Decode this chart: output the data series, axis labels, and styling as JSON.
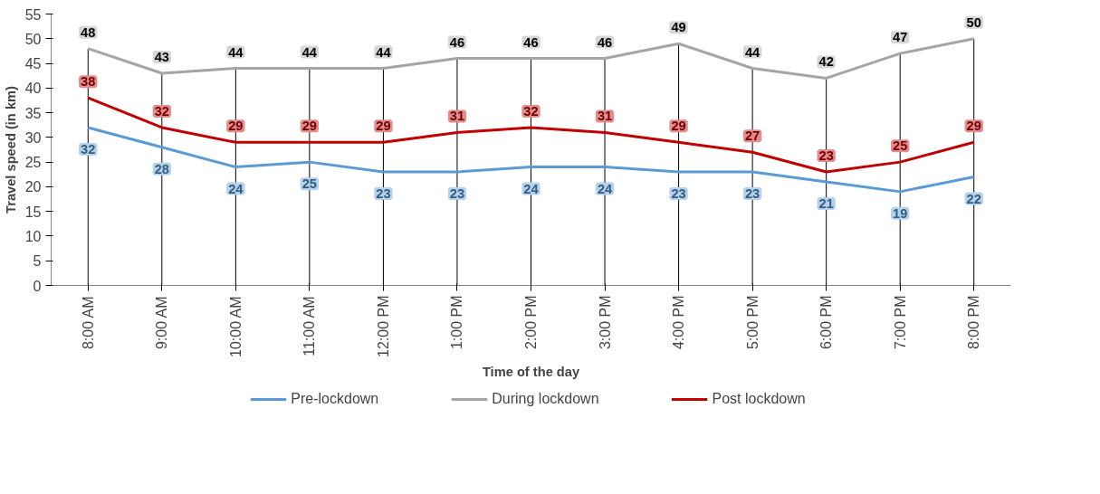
{
  "chart_data": {
    "type": "line",
    "xlabel": "Time of the day",
    "ylabel": "Travel speed (in km)",
    "categories": [
      "8:00 AM",
      "9:00 AM",
      "10:00 AM",
      "11:00 AM",
      "12:00 PM",
      "1:00 PM",
      "2:00 PM",
      "3:00 PM",
      "4:00 PM",
      "5:00 PM",
      "6:00 PM",
      "7:00 PM",
      "8:00 PM"
    ],
    "series": [
      {
        "name": "Pre-lockdown",
        "color": "#5b9bd5",
        "values": [
          32,
          28,
          24,
          25,
          23,
          23,
          24,
          24,
          23,
          23,
          21,
          19,
          22
        ]
      },
      {
        "name": "During lockdown",
        "color": "#a5a5a5",
        "values": [
          48,
          43,
          44,
          44,
          44,
          46,
          46,
          46,
          49,
          44,
          42,
          47,
          50
        ]
      },
      {
        "name": "Post lockdown",
        "color": "#c00000",
        "values": [
          38,
          32,
          29,
          29,
          29,
          31,
          32,
          31,
          29,
          27,
          23,
          25,
          29
        ]
      }
    ],
    "ylim": [
      0,
      55
    ],
    "yticks": [
      0,
      5,
      10,
      15,
      20,
      25,
      30,
      35,
      40,
      45,
      50,
      55
    ],
    "grid": "x",
    "legend": "bottom",
    "data_labels": true,
    "marker": "none",
    "line_style": "solid"
  }
}
